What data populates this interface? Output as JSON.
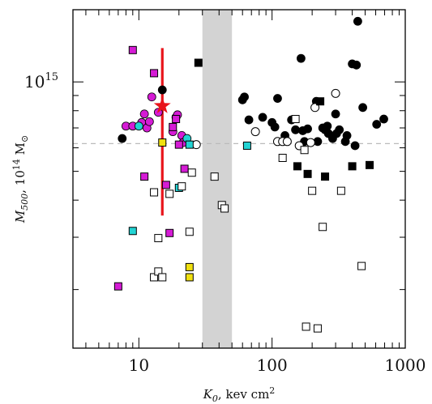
{
  "chart_data": {
    "type": "scatter",
    "title": "",
    "xlabel": "K0, kev cm²",
    "xlabel_parts": {
      "var": "K",
      "sub": "0",
      "rest": ", kev cm",
      "sup": "2"
    },
    "ylabel": "M500, 10¹⁴ M☉",
    "ylabel_parts": {
      "var": "M",
      "sub": "500",
      "rest": ", 10",
      "sup": "14",
      "unit": " M",
      "sun": "⊙"
    },
    "x_scale": "log",
    "y_scale": "log",
    "xlim": [
      3.2,
      1000
    ],
    "ylim": [
      127000000000000.0,
      1750000000000000.0
    ],
    "x_ticks": [
      {
        "value": 10,
        "label": "10"
      },
      {
        "value": 100,
        "label": "100"
      },
      {
        "value": 1000,
        "label": "1000"
      }
    ],
    "y_ticks": [
      {
        "value": 1000000000000000.0,
        "base": "10",
        "exp": "15"
      }
    ],
    "reference_line": {
      "y": 620000000000000.0,
      "style": "dashed",
      "color": "#bbbbbb"
    },
    "shaded_band": {
      "x0": 30,
      "x1": 50,
      "color": "#d3d3d3"
    },
    "highlight": {
      "x": 15,
      "y": 830000000000000.0,
      "y_low": 355000000000000.0,
      "y_high": 1300000000000000.0,
      "color": "#e8141b"
    },
    "series": [
      {
        "marker": "filled-circle",
        "color": "#000000",
        "points": [
          [
            7.5,
            645000000000000.0
          ],
          [
            15,
            940000000000000.0
          ],
          [
            60,
            870000000000000.0
          ],
          [
            62,
            890000000000000.0
          ],
          [
            67,
            745000000000000.0
          ],
          [
            85,
            760000000000000.0
          ],
          [
            100,
            730000000000000.0
          ],
          [
            105,
            705000000000000.0
          ],
          [
            110,
            880000000000000.0
          ],
          [
            125,
            660000000000000.0
          ],
          [
            140,
            745000000000000.0
          ],
          [
            150,
            690000000000000.0
          ],
          [
            165,
            1200000000000000.0
          ],
          [
            170,
            685000000000000.0
          ],
          [
            175,
            630000000000000.0
          ],
          [
            185,
            695000000000000.0
          ],
          [
            215,
            860000000000000.0
          ],
          [
            220,
            630000000000000.0
          ],
          [
            240,
            700000000000000.0
          ],
          [
            250,
            690000000000000.0
          ],
          [
            260,
            710000000000000.0
          ],
          [
            265,
            670000000000000.0
          ],
          [
            285,
            645000000000000.0
          ],
          [
            300,
            780000000000000.0
          ],
          [
            305,
            670000000000000.0
          ],
          [
            320,
            690000000000000.0
          ],
          [
            355,
            630000000000000.0
          ],
          [
            365,
            660000000000000.0
          ],
          [
            400,
            1150000000000000.0
          ],
          [
            420,
            610000000000000.0
          ],
          [
            430,
            1140000000000000.0
          ],
          [
            440,
            1600000000000000.0
          ],
          [
            480,
            820000000000000.0
          ],
          [
            610,
            720000000000000.0
          ],
          [
            690,
            750000000000000.0
          ]
        ]
      },
      {
        "marker": "open-circle",
        "color": "#000000",
        "points": [
          [
            27,
            615000000000000.0
          ],
          [
            75,
            680000000000000.0
          ],
          [
            110,
            630000000000000.0
          ],
          [
            120,
            630000000000000.0
          ],
          [
            130,
            630000000000000.0
          ],
          [
            160,
            610000000000000.0
          ],
          [
            195,
            625000000000000.0
          ],
          [
            210,
            820000000000000.0
          ],
          [
            300,
            915000000000000.0
          ]
        ]
      },
      {
        "marker": "magenta-circle",
        "color": "#d51bd5",
        "points": [
          [
            8,
            710000000000000.0
          ],
          [
            9,
            710000000000000.0
          ],
          [
            10.5,
            730000000000000.0
          ],
          [
            11,
            780000000000000.0
          ],
          [
            11.5,
            700000000000000.0
          ],
          [
            12,
            735000000000000.0
          ],
          [
            12.5,
            890000000000000.0
          ],
          [
            14,
            790000000000000.0
          ],
          [
            18,
            680000000000000.0
          ],
          [
            19,
            760000000000000.0
          ],
          [
            19.5,
            775000000000000.0
          ],
          [
            21,
            660000000000000.0
          ],
          [
            21.5,
            625000000000000.0
          ]
        ]
      },
      {
        "marker": "cyan-circle",
        "color": "#22d3d3",
        "points": [
          [
            10,
            710000000000000.0
          ],
          [
            23,
            645000000000000.0
          ]
        ]
      },
      {
        "marker": "magenta-square",
        "color": "#d51bd5",
        "points": [
          [
            7,
            205000000000000.0
          ],
          [
            9,
            1280000000000000.0
          ],
          [
            11,
            480000000000000.0
          ],
          [
            13,
            1070000000000000.0
          ],
          [
            18,
            705000000000000.0
          ],
          [
            19,
            750000000000000.0
          ],
          [
            16,
            450000000000000.0
          ],
          [
            17,
            310000000000000.0
          ],
          [
            20,
            615000000000000.0
          ],
          [
            22,
            510000000000000.0
          ]
        ]
      },
      {
        "marker": "cyan-square",
        "color": "#22d3d3",
        "points": [
          [
            9,
            315000000000000.0
          ],
          [
            20,
            440000000000000.0
          ],
          [
            24,
            615000000000000.0
          ],
          [
            65,
            610000000000000.0
          ]
        ]
      },
      {
        "marker": "yellow-square",
        "color": "#f0e010",
        "points": [
          [
            15,
            625000000000000.0
          ],
          [
            24,
            238000000000000.0
          ],
          [
            24,
            220000000000000.0
          ]
        ]
      },
      {
        "marker": "filled-square",
        "color": "#000000",
        "points": [
          [
            28,
            1160000000000000.0
          ],
          [
            155,
            520000000000000.0
          ],
          [
            185,
            490000000000000.0
          ],
          [
            230,
            860000000000000.0
          ],
          [
            250,
            480000000000000.0
          ],
          [
            400,
            520000000000000.0
          ],
          [
            540,
            525000000000000.0
          ]
        ]
      },
      {
        "marker": "open-square",
        "color": "#000000",
        "points": [
          [
            13,
            425000000000000.0
          ],
          [
            14,
            298000000000000.0
          ],
          [
            17,
            420000000000000.0
          ],
          [
            21,
            445000000000000.0
          ],
          [
            24,
            313000000000000.0
          ],
          [
            25,
            495000000000000.0
          ],
          [
            37,
            480000000000000.0
          ],
          [
            42,
            385000000000000.0
          ],
          [
            44,
            375000000000000.0
          ],
          [
            13,
            220000000000000.0
          ],
          [
            14,
            230000000000000.0
          ],
          [
            15,
            220000000000000.0
          ],
          [
            120,
            555000000000000.0
          ],
          [
            150,
            750000000000000.0
          ],
          [
            175,
            590000000000000.0
          ],
          [
            200,
            430000000000000.0
          ],
          [
            240,
            325000000000000.0
          ],
          [
            330,
            430000000000000.0
          ],
          [
            470,
            240000000000000.0
          ],
          [
            180,
            150000000000000.0
          ],
          [
            220,
            148000000000000.0
          ]
        ]
      }
    ]
  }
}
